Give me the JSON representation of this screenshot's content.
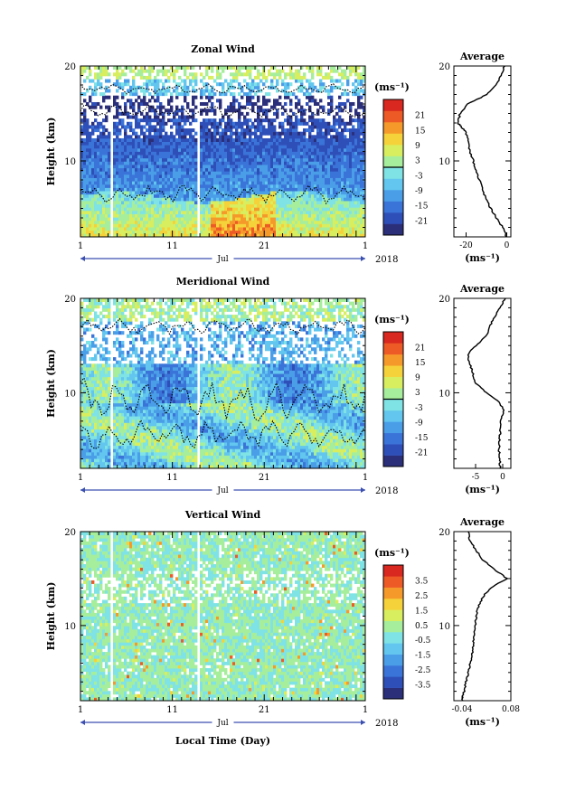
{
  "figure": {
    "xlabel": "Local Time (Day)",
    "year": "2018",
    "month": "Jul",
    "x_tick_labels": [
      "1",
      "11",
      "21",
      "1"
    ],
    "y_tick_labels": [
      "10",
      "20"
    ],
    "ylabel": "Height (km)",
    "unit": "(ms⁻¹)",
    "profile_title": "Average",
    "colormap": [
      "#2b2f7a",
      "#2f4fb8",
      "#3b74d8",
      "#4a9ee8",
      "#62c6ee",
      "#7fe3e6",
      "#a6ee9c",
      "#d9ee5e",
      "#f5d23a",
      "#f59a2a",
      "#ee5a26",
      "#d8281f"
    ]
  },
  "chart_data": [
    {
      "type": "heatmap",
      "title": "Zonal Wind",
      "ylabel": "Height (km)",
      "xlabel": "",
      "x_range_days": [
        1,
        31
      ],
      "ylim": [
        2,
        20
      ],
      "colorbar": {
        "unit": "(ms⁻¹)",
        "ticks": [
          "21",
          "15",
          "9",
          "3",
          "-3",
          "-9",
          "-15",
          "-21"
        ],
        "range": [
          -24,
          24
        ],
        "zero_line": true
      },
      "x_tick_labels": [
        "1",
        "11",
        "21",
        "1"
      ],
      "month": "Jul",
      "year": "2018",
      "profile": {
        "title": "Average",
        "unit": "(ms⁻¹)",
        "xticks": [
          "-20",
          "0"
        ],
        "xlim": [
          -26,
          2
        ],
        "heights_km": [
          2,
          3,
          4,
          5,
          6,
          7,
          8,
          9,
          10,
          11,
          12,
          13,
          13.5,
          14,
          15,
          16,
          17,
          18,
          19,
          20
        ],
        "values": [
          0,
          -2,
          -5,
          -8,
          -10,
          -12,
          -13.5,
          -15,
          -16.5,
          -18,
          -19,
          -20,
          -22,
          -24,
          -23,
          -19,
          -10,
          -5,
          -3,
          -1
        ]
      }
    },
    {
      "type": "heatmap",
      "title": "Meridional Wind",
      "ylabel": "Height (km)",
      "xlabel": "",
      "x_range_days": [
        1,
        31
      ],
      "ylim": [
        2,
        20
      ],
      "colorbar": {
        "unit": "(ms⁻¹)",
        "ticks": [
          "21",
          "15",
          "9",
          "3",
          "-3",
          "-9",
          "-15",
          "-21"
        ],
        "range": [
          -24,
          24
        ],
        "zero_line": true
      },
      "x_tick_labels": [
        "1",
        "11",
        "21",
        "1"
      ],
      "month": "Jul",
      "year": "2018",
      "profile": {
        "title": "Average",
        "unit": "(ms⁻¹)",
        "xticks": [
          "-5",
          "0"
        ],
        "xlim": [
          -9,
          1.5
        ],
        "heights_km": [
          2,
          3,
          4,
          5,
          6,
          7,
          8,
          9,
          10,
          11,
          12,
          13,
          14,
          15,
          16,
          17,
          18,
          19,
          20
        ],
        "values": [
          -0.5,
          -0.5,
          -0.7,
          -0.6,
          -0.4,
          -0.3,
          0.2,
          -0.5,
          -3,
          -5,
          -5.5,
          -6,
          -6.5,
          -5,
          -3,
          -2.5,
          -1.5,
          -0.5,
          0.5
        ]
      }
    },
    {
      "type": "heatmap",
      "title": "Vertical Wind",
      "ylabel": "Height (km)",
      "xlabel": "Local Time (Day)",
      "x_range_days": [
        1,
        31
      ],
      "ylim": [
        2,
        20
      ],
      "colorbar": {
        "unit": "(ms⁻¹)",
        "ticks": [
          "3.5",
          "2.5",
          "1.5",
          "0.5",
          "-0.5",
          "-1.5",
          "-2.5",
          "-3.5"
        ],
        "range": [
          -4,
          4
        ],
        "zero_line": false
      },
      "x_tick_labels": [
        "1",
        "11",
        "21",
        "1"
      ],
      "month": "Jul",
      "year": "2018",
      "profile": {
        "title": "Average",
        "unit": "(ms⁻¹)",
        "xticks": [
          "-0.04",
          "0.08"
        ],
        "xlim": [
          -0.06,
          0.08
        ],
        "heights_km": [
          2,
          3,
          4,
          5,
          6,
          7,
          8,
          9,
          10,
          11,
          12,
          13,
          14,
          15,
          16,
          17,
          18,
          19,
          20
        ],
        "values": [
          -0.04,
          -0.035,
          -0.03,
          -0.025,
          -0.02,
          -0.015,
          -0.012,
          -0.01,
          -0.008,
          -0.005,
          0.0,
          0.01,
          0.03,
          0.07,
          0.04,
          0.01,
          -0.005,
          -0.02,
          -0.025
        ]
      }
    }
  ]
}
